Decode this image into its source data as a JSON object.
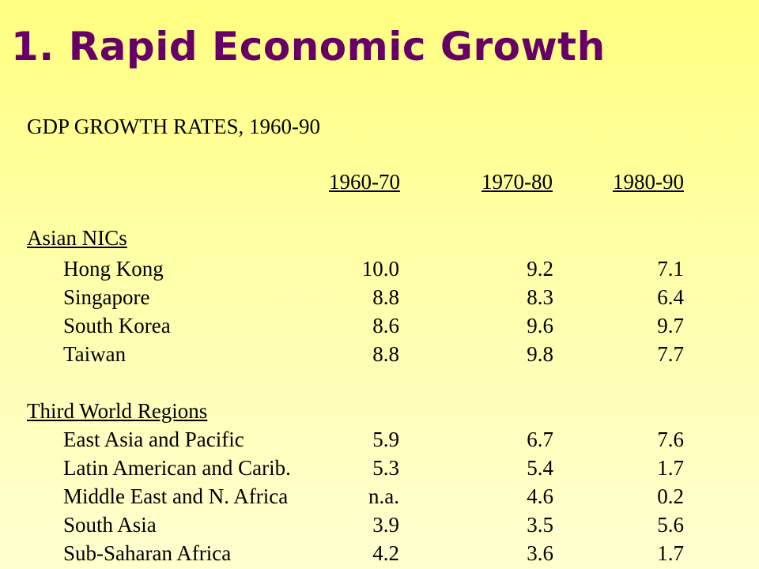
{
  "slide": {
    "title": "1. Rapid Economic Growth"
  },
  "table": {
    "heading": "GDP GROWTH RATES, 1960-90",
    "columns": [
      "1960-70",
      "1970-80",
      "1980-90"
    ],
    "groups": [
      {
        "name": "Asian NICs",
        "rows": [
          {
            "label": "Hong Kong",
            "values": [
              "10.0",
              "9.2",
              "7.1"
            ]
          },
          {
            "label": "Singapore",
            "values": [
              "8.8",
              "8.3",
              "6.4"
            ]
          },
          {
            "label": "South Korea",
            "values": [
              "8.6",
              "9.6",
              "9.7"
            ]
          },
          {
            "label": "Taiwan",
            "values": [
              "8.8",
              "9.8",
              "7.7"
            ]
          }
        ]
      },
      {
        "name": "Third World Regions",
        "rows": [
          {
            "label": "East Asia and Pacific",
            "values": [
              "5.9",
              "6.7",
              "7.6"
            ]
          },
          {
            "label": "Latin American and Carib.",
            "values": [
              "5.3",
              "5.4",
              "1.7"
            ]
          },
          {
            "label": "Middle East and N. Africa",
            "values": [
              "n.a.",
              "4.6",
              "0.2"
            ]
          },
          {
            "label": "South Asia",
            "values": [
              "3.9",
              "3.5",
              "5.6"
            ]
          },
          {
            "label": "Sub-Saharan Africa",
            "values": [
              "4.2",
              "3.6",
              "1.7"
            ]
          }
        ]
      }
    ]
  }
}
